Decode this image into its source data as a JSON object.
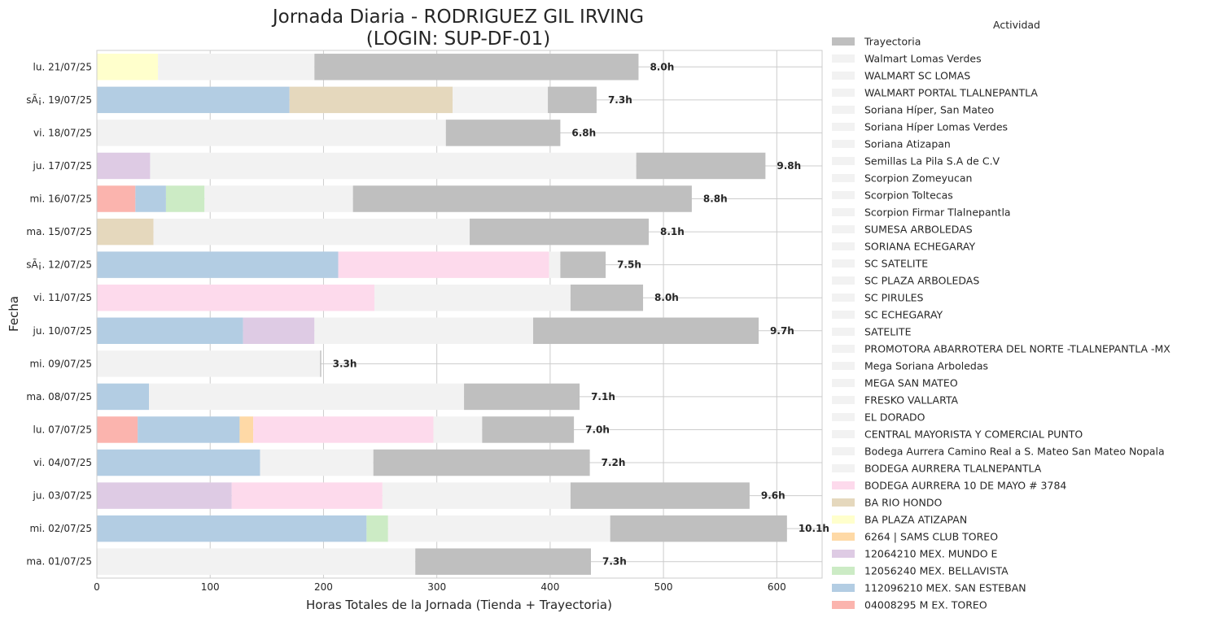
{
  "chart_data": {
    "type": "bar",
    "orientation": "horizontal",
    "stacked": true,
    "title": "Jornada Diaria - RODRIGUEZ GIL IRVING",
    "subtitle": "(LOGIN: SUP-DF-01)",
    "xlabel": "Horas Totales de la Jornada (Tienda + Trayectoria)",
    "ylabel": "Fecha",
    "xlim": [
      0,
      640
    ],
    "xticks": [
      0,
      100,
      200,
      300,
      400,
      500,
      600
    ],
    "grid": true,
    "legend_title": "Actividad",
    "legend_placement": "outside-right",
    "legend": [
      {
        "name": "Trayectoria",
        "color": "#bfbfbf"
      },
      {
        "name": "Walmart Lomas Verdes",
        "color": "#f2f2f2"
      },
      {
        "name": "WALMART SC LOMAS",
        "color": "#f2f2f2"
      },
      {
        "name": "WALMART PORTAL TLALNEPANTLA",
        "color": "#f2f2f2"
      },
      {
        "name": "Soriana Híper, San Mateo",
        "color": "#f2f2f2"
      },
      {
        "name": "Soriana Híper Lomas Verdes",
        "color": "#f2f2f2"
      },
      {
        "name": "Soriana Atizapan",
        "color": "#f2f2f2"
      },
      {
        "name": "Semillas La Pila S.A de C.V",
        "color": "#f2f2f2"
      },
      {
        "name": "Scorpion Zomeyucan",
        "color": "#f2f2f2"
      },
      {
        "name": "Scorpion Toltecas",
        "color": "#f2f2f2"
      },
      {
        "name": "Scorpion Firmar Tlalnepantla",
        "color": "#f2f2f2"
      },
      {
        "name": "SUMESA ARBOLEDAS",
        "color": "#f2f2f2"
      },
      {
        "name": "SORIANA ECHEGARAY",
        "color": "#f2f2f2"
      },
      {
        "name": "SC SATELITE",
        "color": "#f2f2f2"
      },
      {
        "name": "SC PLAZA ARBOLEDAS",
        "color": "#f2f2f2"
      },
      {
        "name": "SC PIRULES",
        "color": "#f2f2f2"
      },
      {
        "name": "SC ECHEGARAY",
        "color": "#f2f2f2"
      },
      {
        "name": "SATELITE",
        "color": "#f2f2f2"
      },
      {
        "name": "PROMOTORA ABARROTERA DEL NORTE -TLALNEPANTLA -MX",
        "color": "#f2f2f2"
      },
      {
        "name": "Mega Soriana Arboledas",
        "color": "#f2f2f2"
      },
      {
        "name": "MEGA SAN MATEO",
        "color": "#f2f2f2"
      },
      {
        "name": "FRESKO VALLARTA",
        "color": "#f2f2f2"
      },
      {
        "name": "EL DORADO",
        "color": "#f2f2f2"
      },
      {
        "name": "CENTRAL MAYORISTA Y COMERCIAL PUNTO",
        "color": "#f2f2f2"
      },
      {
        "name": "Bodega Aurrera Camino Real a S. Mateo San Mateo Nopala",
        "color": "#f2f2f2"
      },
      {
        "name": "BODEGA AURRERA TLALNEPANTLA",
        "color": "#f2f2f2"
      },
      {
        "name": "BODEGA AURRERA 10 DE MAYO # 3784",
        "color": "#fddaec"
      },
      {
        "name": "BA RIO HONDO",
        "color": "#e5d8bd"
      },
      {
        "name": "BA PLAZA ATIZAPAN",
        "color": "#ffffcc"
      },
      {
        "name": "6264 | SAMS CLUB TOREO",
        "color": "#fed9a6"
      },
      {
        "name": "12064210 MEX. MUNDO E",
        "color": "#decbe4"
      },
      {
        "name": "12056240 MEX. BELLAVISTA",
        "color": "#ccebc5"
      },
      {
        "name": "112096210 MEX. SAN ESTEBAN",
        "color": "#b3cde3"
      },
      {
        "name": "04008295 M EX. TOREO",
        "color": "#fbb4ae"
      }
    ],
    "rows": [
      {
        "label": "lu. 21/07/25",
        "total_label": "8.0h",
        "segments": [
          {
            "color": "#ffffcc",
            "value": 54
          },
          {
            "color": "#f2f2f2",
            "value": 138
          },
          {
            "color": "#bfbfbf",
            "value": 286
          }
        ]
      },
      {
        "label": "sÃ¡. 19/07/25",
        "total_label": "7.3h",
        "segments": [
          {
            "color": "#b3cde3",
            "value": 170
          },
          {
            "color": "#e5d8bd",
            "value": 144
          },
          {
            "color": "#f2f2f2",
            "value": 84
          },
          {
            "color": "#bfbfbf",
            "value": 43
          }
        ]
      },
      {
        "label": "vi. 18/07/25",
        "total_label": "6.8h",
        "segments": [
          {
            "color": "#f2f2f2",
            "value": 308
          },
          {
            "color": "#bfbfbf",
            "value": 101
          }
        ]
      },
      {
        "label": "ju. 17/07/25",
        "total_label": "9.8h",
        "segments": [
          {
            "color": "#decbe4",
            "value": 47
          },
          {
            "color": "#f2f2f2",
            "value": 429
          },
          {
            "color": "#bfbfbf",
            "value": 114
          }
        ]
      },
      {
        "label": "mi. 16/07/25",
        "total_label": "8.8h",
        "segments": [
          {
            "color": "#fbb4ae",
            "value": 34
          },
          {
            "color": "#b3cde3",
            "value": 27
          },
          {
            "color": "#ccebc5",
            "value": 34
          },
          {
            "color": "#f2f2f2",
            "value": 131
          },
          {
            "color": "#bfbfbf",
            "value": 299
          }
        ]
      },
      {
        "label": "ma. 15/07/25",
        "total_label": "8.1h",
        "segments": [
          {
            "color": "#e5d8bd",
            "value": 50
          },
          {
            "color": "#f2f2f2",
            "value": 279
          },
          {
            "color": "#bfbfbf",
            "value": 158
          }
        ]
      },
      {
        "label": "sÃ¡. 12/07/25",
        "total_label": "7.5h",
        "segments": [
          {
            "color": "#b3cde3",
            "value": 213
          },
          {
            "color": "#fddaec",
            "value": 186
          },
          {
            "color": "#f2f2f2",
            "value": 10
          },
          {
            "color": "#bfbfbf",
            "value": 40
          }
        ]
      },
      {
        "label": "vi. 11/07/25",
        "total_label": "8.0h",
        "segments": [
          {
            "color": "#fddaec",
            "value": 245
          },
          {
            "color": "#f2f2f2",
            "value": 173
          },
          {
            "color": "#bfbfbf",
            "value": 64
          }
        ]
      },
      {
        "label": "ju. 10/07/25",
        "total_label": "9.7h",
        "segments": [
          {
            "color": "#b3cde3",
            "value": 129
          },
          {
            "color": "#decbe4",
            "value": 63
          },
          {
            "color": "#f2f2f2",
            "value": 193
          },
          {
            "color": "#bfbfbf",
            "value": 199
          }
        ]
      },
      {
        "label": "mi. 09/07/25",
        "total_label": "3.3h",
        "segments": [
          {
            "color": "#f2f2f2",
            "value": 197
          },
          {
            "color": "#bfbfbf",
            "value": 1
          }
        ]
      },
      {
        "label": "ma. 08/07/25",
        "total_label": "7.1h",
        "segments": [
          {
            "color": "#b3cde3",
            "value": 46
          },
          {
            "color": "#f2f2f2",
            "value": 278
          },
          {
            "color": "#bfbfbf",
            "value": 102
          }
        ]
      },
      {
        "label": "lu. 07/07/25",
        "total_label": "7.0h",
        "segments": [
          {
            "color": "#fbb4ae",
            "value": 36
          },
          {
            "color": "#b3cde3",
            "value": 90
          },
          {
            "color": "#fed9a6",
            "value": 12
          },
          {
            "color": "#fddaec",
            "value": 159
          },
          {
            "color": "#f2f2f2",
            "value": 43
          },
          {
            "color": "#bfbfbf",
            "value": 81
          }
        ]
      },
      {
        "label": "vi. 04/07/25",
        "total_label": "7.2h",
        "segments": [
          {
            "color": "#b3cde3",
            "value": 144
          },
          {
            "color": "#f2f2f2",
            "value": 100
          },
          {
            "color": "#bfbfbf",
            "value": 191
          }
        ]
      },
      {
        "label": "ju. 03/07/25",
        "total_label": "9.6h",
        "segments": [
          {
            "color": "#decbe4",
            "value": 119
          },
          {
            "color": "#fddaec",
            "value": 133
          },
          {
            "color": "#f2f2f2",
            "value": 166
          },
          {
            "color": "#bfbfbf",
            "value": 158
          }
        ]
      },
      {
        "label": "mi. 02/07/25",
        "total_label": "10.1h",
        "segments": [
          {
            "color": "#b3cde3",
            "value": 238
          },
          {
            "color": "#ccebc5",
            "value": 19
          },
          {
            "color": "#f2f2f2",
            "value": 196
          },
          {
            "color": "#bfbfbf",
            "value": 156
          }
        ]
      },
      {
        "label": "ma. 01/07/25",
        "total_label": "7.3h",
        "segments": [
          {
            "color": "#f2f2f2",
            "value": 281
          },
          {
            "color": "#bfbfbf",
            "value": 155
          }
        ]
      }
    ]
  }
}
